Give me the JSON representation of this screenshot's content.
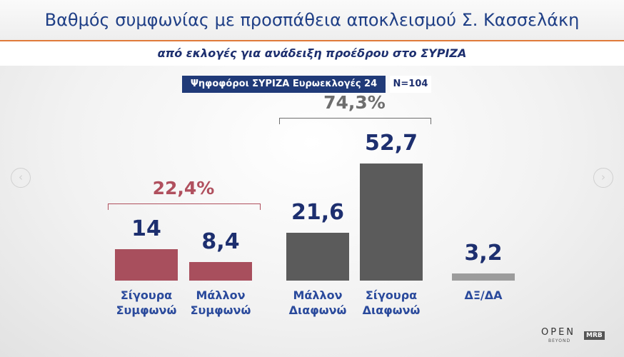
{
  "chart_data": {
    "type": "bar",
    "title": "Βαθμός συμφωνίας με προσπάθεια αποκλεισμού Σ. Κασσελάκη",
    "subtitle": "από εκλογές για ανάδειξη προέδρου στο ΣΥΡΙΖΑ",
    "sample": "Ψηφοφόροι ΣΥΡΙΖΑ Ευρωεκλογές 24",
    "sample_size": "N=104",
    "categories": [
      "Σίγουρα Συμφωνώ",
      "Μάλλον Συμφωνώ",
      "Μάλλον Διαφωνώ",
      "Σίγουρα Διαφωνώ",
      "ΔΞ/ΔΑ"
    ],
    "values": [
      14,
      8.4,
      21.6,
      52.7,
      3.2
    ],
    "value_labels": [
      "14",
      "8,4",
      "21,6",
      "52,7",
      "3,2"
    ],
    "colors": [
      "#a84f5d",
      "#a84f5d",
      "#5b5b5b",
      "#5b5b5b",
      "#9c9c9c"
    ],
    "groups": [
      {
        "label": "22,4%",
        "span": [
          0,
          1
        ],
        "color": "#b0505e"
      },
      {
        "label": "74,3%",
        "span": [
          2,
          3
        ],
        "color": "#6e6e6e"
      }
    ],
    "logos": {
      "channel": "OPEN",
      "tagline": "BEYOND",
      "pollster": "MRB"
    }
  }
}
